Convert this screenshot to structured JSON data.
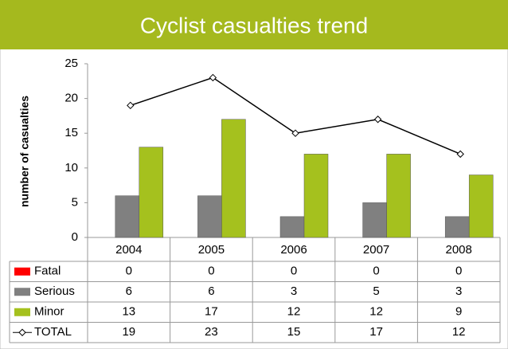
{
  "chart_data": {
    "type": "bar",
    "title": "Cyclist casualties trend",
    "y_label": "number of casualties",
    "categories": [
      "2004",
      "2005",
      "2006",
      "2007",
      "2008"
    ],
    "series": [
      {
        "name": "Fatal",
        "color": "#ff0000",
        "values": [
          0,
          0,
          0,
          0,
          0
        ]
      },
      {
        "name": "Serious",
        "color": "#808080",
        "values": [
          6,
          6,
          3,
          5,
          3
        ]
      },
      {
        "name": "Minor",
        "color": "#a5c11e",
        "values": [
          13,
          17,
          12,
          12,
          9
        ]
      },
      {
        "name": "TOTAL",
        "color": "#000000",
        "type": "line",
        "values": [
          19,
          23,
          15,
          17,
          12
        ]
      }
    ],
    "ylim": [
      0,
      25
    ],
    "yticks": [
      0,
      5,
      10,
      15,
      20,
      25
    ],
    "grid": false
  }
}
